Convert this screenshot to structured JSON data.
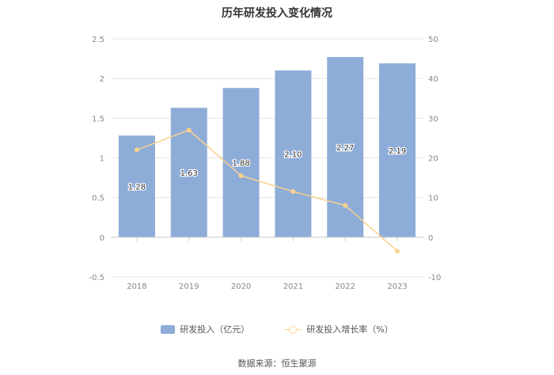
{
  "chart_data": {
    "type": "bar",
    "title": "历年研发投入变化情况",
    "categories": [
      "2018",
      "2019",
      "2020",
      "2021",
      "2022",
      "2023"
    ],
    "series": [
      {
        "name": "研发投入（亿元）",
        "type": "bar",
        "axis": "left",
        "values": [
          1.28,
          1.63,
          1.88,
          2.1,
          2.27,
          2.19
        ],
        "labels": [
          "1.28",
          "1.63",
          "1.88",
          "2.10",
          "2.27",
          "2.19"
        ],
        "color": "#8eacd8"
      },
      {
        "name": "研发投入增长率（%）",
        "type": "line",
        "axis": "right",
        "values": [
          22,
          27,
          15.5,
          11.5,
          8,
          -3.5
        ],
        "color": "#f8d28e"
      }
    ],
    "left_axis": {
      "ylim": [
        -0.5,
        2.5
      ],
      "ticks": [
        "-0.5",
        "0",
        "0.5",
        "1",
        "1.5",
        "2",
        "2.5"
      ]
    },
    "right_axis": {
      "ylim": [
        -10,
        50
      ],
      "ticks": [
        "-10",
        "0",
        "10",
        "20",
        "30",
        "40",
        "50"
      ]
    },
    "grid": true,
    "legend": "bottom"
  },
  "source": "数据来源：恒生聚源"
}
